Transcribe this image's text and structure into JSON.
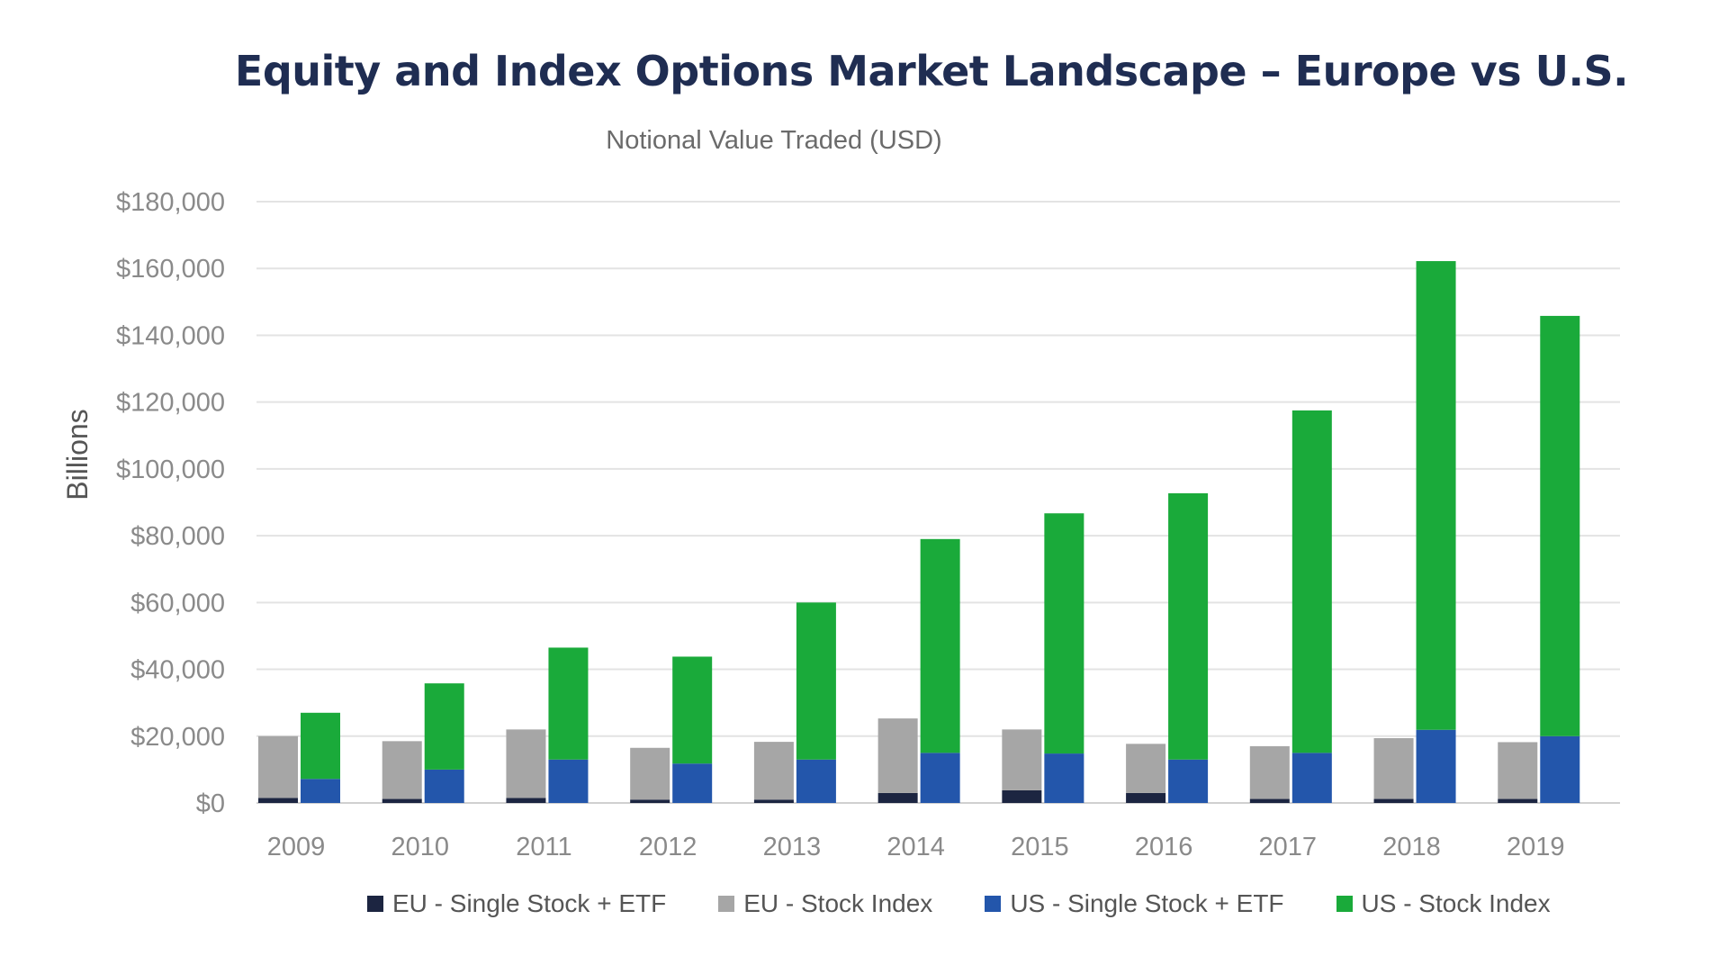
{
  "chart_data": {
    "type": "bar",
    "title": "Equity and Index Options Market Landscape – Europe vs U.S.",
    "subtitle": "Notional Value Traded (USD)",
    "ylabel": "Billions",
    "xlabel": "",
    "ylim": [
      0,
      180000
    ],
    "yticks": [
      0,
      20000,
      40000,
      60000,
      80000,
      100000,
      120000,
      140000,
      160000,
      180000
    ],
    "ytick_labels": [
      "$0",
      "$20,000",
      "$40,000",
      "$60,000",
      "$80,000",
      "$100,000",
      "$120,000",
      "$140,000",
      "$160,000",
      "$180,000"
    ],
    "grid": true,
    "legend_position": "bottom",
    "categories": [
      "2009",
      "2010",
      "2011",
      "2012",
      "2013",
      "2014",
      "2015",
      "2016",
      "2017",
      "2018",
      "2019"
    ],
    "stacks": [
      {
        "stack": "EU",
        "series": [
          "EU - Single Stock + ETF",
          "EU - Stock Index"
        ]
      },
      {
        "stack": "US",
        "series": [
          "US - Single Stock + ETF",
          "US - Stock Index"
        ]
      }
    ],
    "series": [
      {
        "name": "EU - Single Stock + ETF",
        "stack": "EU",
        "color": "#1c2541",
        "values": [
          1500,
          1200,
          1500,
          1000,
          1000,
          3000,
          3800,
          3000,
          1200,
          1200,
          1200
        ]
      },
      {
        "name": "EU - Stock Index",
        "stack": "EU",
        "color": "#a6a6a6",
        "values": [
          18500,
          17300,
          20500,
          15500,
          17300,
          22300,
          18200,
          14700,
          15800,
          18200,
          17000
        ]
      },
      {
        "name": "US - Single Stock + ETF",
        "stack": "US",
        "color": "#2356ab",
        "values": [
          7200,
          10000,
          13000,
          11800,
          13000,
          15000,
          14800,
          13000,
          15000,
          21900,
          20000
        ]
      },
      {
        "name": "US - Stock Index",
        "stack": "US",
        "color": "#1aaa3a",
        "values": [
          19800,
          25800,
          33500,
          32000,
          47000,
          64000,
          71900,
          79700,
          102500,
          140300,
          125800
        ]
      }
    ]
  }
}
